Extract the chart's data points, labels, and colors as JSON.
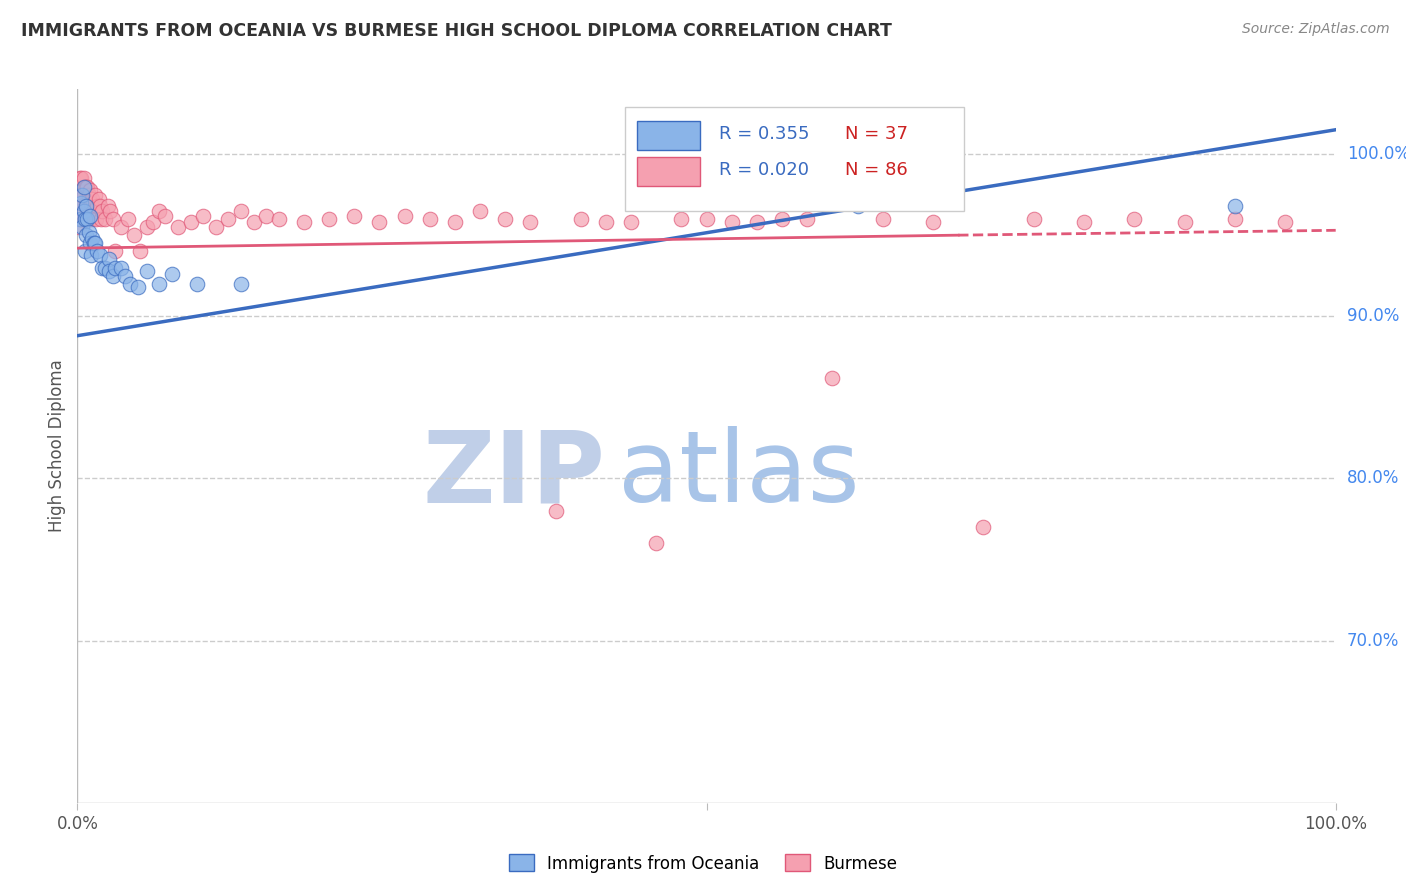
{
  "title": "IMMIGRANTS FROM OCEANIA VS BURMESE HIGH SCHOOL DIPLOMA CORRELATION CHART",
  "source": "Source: ZipAtlas.com",
  "ylabel": "High School Diploma",
  "legend_blue_label": "Immigrants from Oceania",
  "legend_pink_label": "Burmese",
  "legend_r_blue": "R = 0.355",
  "legend_n_blue": "N = 37",
  "legend_r_pink": "R = 0.020",
  "legend_n_pink": "N = 86",
  "watermark_zip": "ZIP",
  "watermark_atlas": "atlas",
  "yright_ticks": [
    0.7,
    0.8,
    0.9,
    1.0
  ],
  "yright_labels": [
    "70.0%",
    "80.0%",
    "90.0%",
    "100.0%"
  ],
  "blue_scatter_x": [
    0.002,
    0.003,
    0.004,
    0.004,
    0.005,
    0.005,
    0.006,
    0.006,
    0.007,
    0.007,
    0.008,
    0.009,
    0.01,
    0.01,
    0.011,
    0.012,
    0.013,
    0.014,
    0.016,
    0.018,
    0.02,
    0.022,
    0.025,
    0.025,
    0.028,
    0.03,
    0.035,
    0.038,
    0.042,
    0.048,
    0.055,
    0.065,
    0.075,
    0.095,
    0.13,
    0.62,
    0.92
  ],
  "blue_scatter_y": [
    0.96,
    0.97,
    0.975,
    0.955,
    0.965,
    0.98,
    0.96,
    0.94,
    0.968,
    0.95,
    0.96,
    0.952,
    0.945,
    0.962,
    0.938,
    0.948,
    0.945,
    0.945,
    0.94,
    0.938,
    0.93,
    0.93,
    0.935,
    0.928,
    0.925,
    0.93,
    0.93,
    0.925,
    0.92,
    0.918,
    0.928,
    0.92,
    0.926,
    0.92,
    0.92,
    0.968,
    0.968
  ],
  "pink_scatter_x": [
    0.001,
    0.001,
    0.002,
    0.002,
    0.003,
    0.003,
    0.003,
    0.004,
    0.004,
    0.005,
    0.005,
    0.006,
    0.006,
    0.007,
    0.007,
    0.007,
    0.008,
    0.008,
    0.009,
    0.009,
    0.01,
    0.01,
    0.011,
    0.011,
    0.012,
    0.013,
    0.014,
    0.015,
    0.016,
    0.017,
    0.018,
    0.019,
    0.02,
    0.022,
    0.024,
    0.026,
    0.028,
    0.03,
    0.035,
    0.04,
    0.045,
    0.05,
    0.055,
    0.06,
    0.065,
    0.07,
    0.08,
    0.09,
    0.1,
    0.11,
    0.12,
    0.13,
    0.14,
    0.15,
    0.16,
    0.18,
    0.2,
    0.22,
    0.24,
    0.26,
    0.28,
    0.3,
    0.32,
    0.34,
    0.36,
    0.4,
    0.44,
    0.48,
    0.52,
    0.56,
    0.6,
    0.64,
    0.68,
    0.72,
    0.76,
    0.8,
    0.84,
    0.88,
    0.92,
    0.96,
    0.38,
    0.42,
    0.46,
    0.5,
    0.54,
    0.58
  ],
  "pink_scatter_y": [
    0.955,
    0.975,
    0.965,
    0.985,
    0.97,
    0.96,
    0.985,
    0.975,
    0.96,
    0.975,
    0.985,
    0.98,
    0.96,
    0.97,
    0.98,
    0.96,
    0.97,
    0.98,
    0.96,
    0.975,
    0.965,
    0.978,
    0.97,
    0.96,
    0.972,
    0.965,
    0.975,
    0.96,
    0.968,
    0.972,
    0.968,
    0.96,
    0.965,
    0.96,
    0.968,
    0.965,
    0.96,
    0.94,
    0.955,
    0.96,
    0.95,
    0.94,
    0.955,
    0.958,
    0.965,
    0.962,
    0.955,
    0.958,
    0.962,
    0.955,
    0.96,
    0.965,
    0.958,
    0.962,
    0.96,
    0.958,
    0.96,
    0.962,
    0.958,
    0.962,
    0.96,
    0.958,
    0.965,
    0.96,
    0.958,
    0.96,
    0.958,
    0.96,
    0.958,
    0.96,
    0.862,
    0.96,
    0.958,
    0.77,
    0.96,
    0.958,
    0.96,
    0.958,
    0.96,
    0.958,
    0.78,
    0.958,
    0.76,
    0.96,
    0.958,
    0.96
  ],
  "blue_trend_x0": 0.0,
  "blue_trend_x1": 1.0,
  "blue_trend_y0": 0.888,
  "blue_trend_y1": 1.015,
  "pink_trend_x0": 0.0,
  "pink_trend_x1": 0.7,
  "pink_trend_x1_dash": 1.0,
  "pink_trend_y0": 0.942,
  "pink_trend_y1": 0.95,
  "pink_trend_y1_dash": 0.953,
  "xlim": [
    0.0,
    1.0
  ],
  "ylim": [
    0.6,
    1.04
  ],
  "color_blue": "#8ab4e8",
  "color_pink": "#f5a0b0",
  "color_blue_line": "#3a6bc0",
  "color_pink_line": "#e05878",
  "background_color": "#ffffff",
  "grid_color": "#cccccc",
  "title_color": "#333333",
  "source_color": "#888888",
  "right_axis_color": "#4488ee",
  "watermark_color_zip": "#c0cfe8",
  "watermark_color_atlas": "#a8c4e8"
}
